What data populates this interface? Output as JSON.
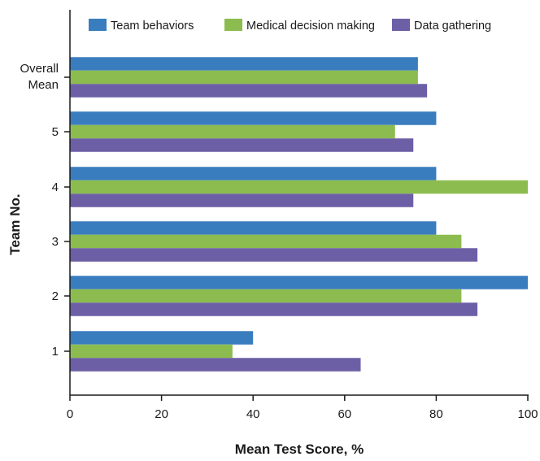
{
  "chart_data": {
    "type": "bar",
    "orientation": "horizontal",
    "categories": [
      "1",
      "2",
      "3",
      "4",
      "5",
      "Overall Mean"
    ],
    "category_label_lines": [
      [
        "1"
      ],
      [
        "2"
      ],
      [
        "3"
      ],
      [
        "4"
      ],
      [
        "5"
      ],
      [
        "Overall",
        "Mean"
      ]
    ],
    "series": [
      {
        "name": "Team behaviors",
        "color": "#3a7dbf",
        "values": [
          40,
          100,
          80,
          80,
          80,
          76
        ]
      },
      {
        "name": "Medical decision making",
        "color": "#8cbc4f",
        "values": [
          35.5,
          85.5,
          85.5,
          100,
          71,
          76
        ]
      },
      {
        "name": "Data gathering",
        "color": "#6d5fa6",
        "values": [
          63.5,
          89,
          89,
          75,
          75,
          78
        ]
      }
    ],
    "xlabel": "Mean Test Score, %",
    "ylabel": "Team No.",
    "xlim": [
      0,
      100
    ],
    "xticks": [
      0,
      20,
      40,
      60,
      80,
      100
    ],
    "grid": false,
    "legend_position": "top"
  }
}
